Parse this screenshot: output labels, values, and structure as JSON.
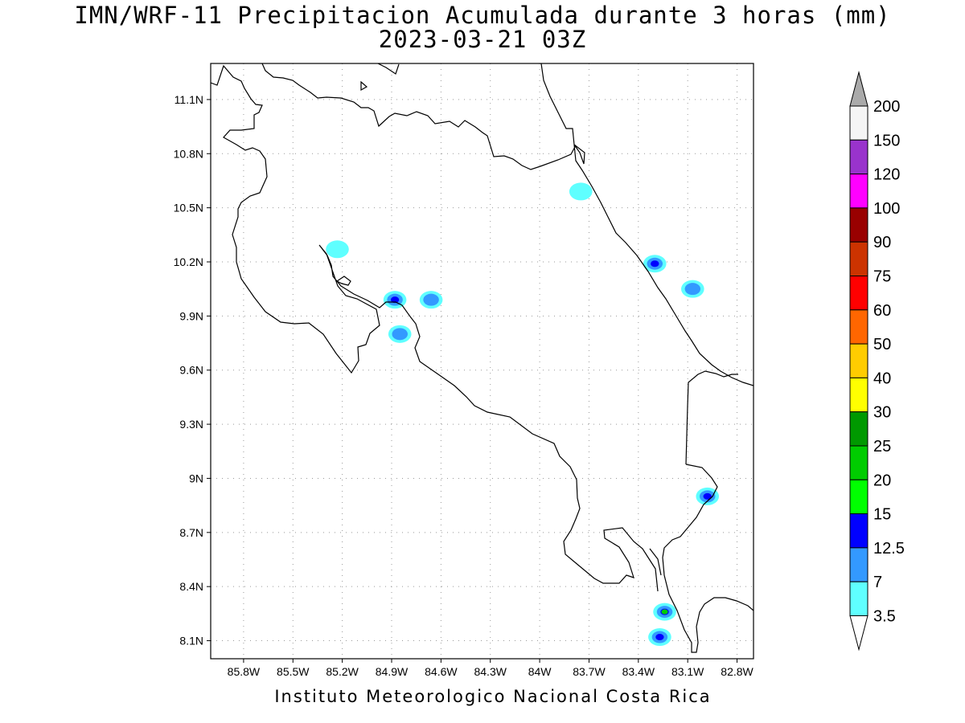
{
  "title": "IMN/WRF-11 Precipitacion Acumulada durante 3 horas (mm)",
  "subtitle": "2023-03-21 03Z",
  "footer": "Instituto Meteorologico Nacional Costa Rica",
  "map": {
    "lon_range": [
      -86.0,
      -82.7
    ],
    "lat_range": [
      8.0,
      11.3
    ],
    "lon_ticks": [
      {
        "v": -85.8,
        "label": "85.8W"
      },
      {
        "v": -85.5,
        "label": "85.5W"
      },
      {
        "v": -85.2,
        "label": "85.2W"
      },
      {
        "v": -84.9,
        "label": "84.9W"
      },
      {
        "v": -84.6,
        "label": "84.6W"
      },
      {
        "v": -84.3,
        "label": "84.3W"
      },
      {
        "v": -84.0,
        "label": "84W"
      },
      {
        "v": -83.7,
        "label": "83.7W"
      },
      {
        "v": -83.4,
        "label": "83.4W"
      },
      {
        "v": -83.1,
        "label": "83.1W"
      },
      {
        "v": -82.8,
        "label": "82.8W"
      }
    ],
    "lat_ticks": [
      {
        "v": 11.1,
        "label": "11.1N"
      },
      {
        "v": 10.8,
        "label": "10.8N"
      },
      {
        "v": 10.5,
        "label": "10.5N"
      },
      {
        "v": 10.2,
        "label": "10.2N"
      },
      {
        "v": 9.9,
        "label": "9.9N"
      },
      {
        "v": 9.6,
        "label": "9.6N"
      },
      {
        "v": 9.3,
        "label": "9.3N"
      },
      {
        "v": 9.0,
        "label": "9N"
      },
      {
        "v": 8.7,
        "label": "8.7N"
      },
      {
        "v": 8.4,
        "label": "8.4N"
      },
      {
        "v": 8.1,
        "label": "8.1N"
      }
    ],
    "grid": "dotted",
    "coastline": "Costa Rica borders and coastline"
  },
  "colorbar": {
    "levels": [
      "3.5",
      "7",
      "12.5",
      "15",
      "20",
      "25",
      "30",
      "40",
      "50",
      "60",
      "75",
      "90",
      "100",
      "120",
      "150",
      "200"
    ],
    "colors": [
      "#ffffff",
      "#5fffff",
      "#3399ff",
      "#0000ff",
      "#00ff00",
      "#00cc00",
      "#009900",
      "#ffff00",
      "#ffcc00",
      "#ff6600",
      "#ff0000",
      "#cc3300",
      "#990000",
      "#ff00ff",
      "#9933cc",
      "#f5f5f5",
      "#aaaaaa"
    ],
    "over_color": "#aaaaaa",
    "under_color": "#ffffff"
  },
  "precip_cells": [
    {
      "lon": -84.88,
      "lat": 9.99,
      "max_mm": 12.5
    },
    {
      "lon": -84.85,
      "lat": 9.8,
      "max_mm": 7
    },
    {
      "lon": -84.66,
      "lat": 9.99,
      "max_mm": 7
    },
    {
      "lon": -85.23,
      "lat": 10.27,
      "max_mm": 3.5
    },
    {
      "lon": -83.3,
      "lat": 10.19,
      "max_mm": 12.5
    },
    {
      "lon": -83.07,
      "lat": 10.05,
      "max_mm": 7
    },
    {
      "lon": -83.75,
      "lat": 10.59,
      "max_mm": 3.5
    },
    {
      "lon": -82.98,
      "lat": 8.9,
      "max_mm": 12.5
    },
    {
      "lon": -83.24,
      "lat": 8.26,
      "max_mm": 20
    },
    {
      "lon": -83.27,
      "lat": 8.12,
      "max_mm": 12.5
    }
  ]
}
